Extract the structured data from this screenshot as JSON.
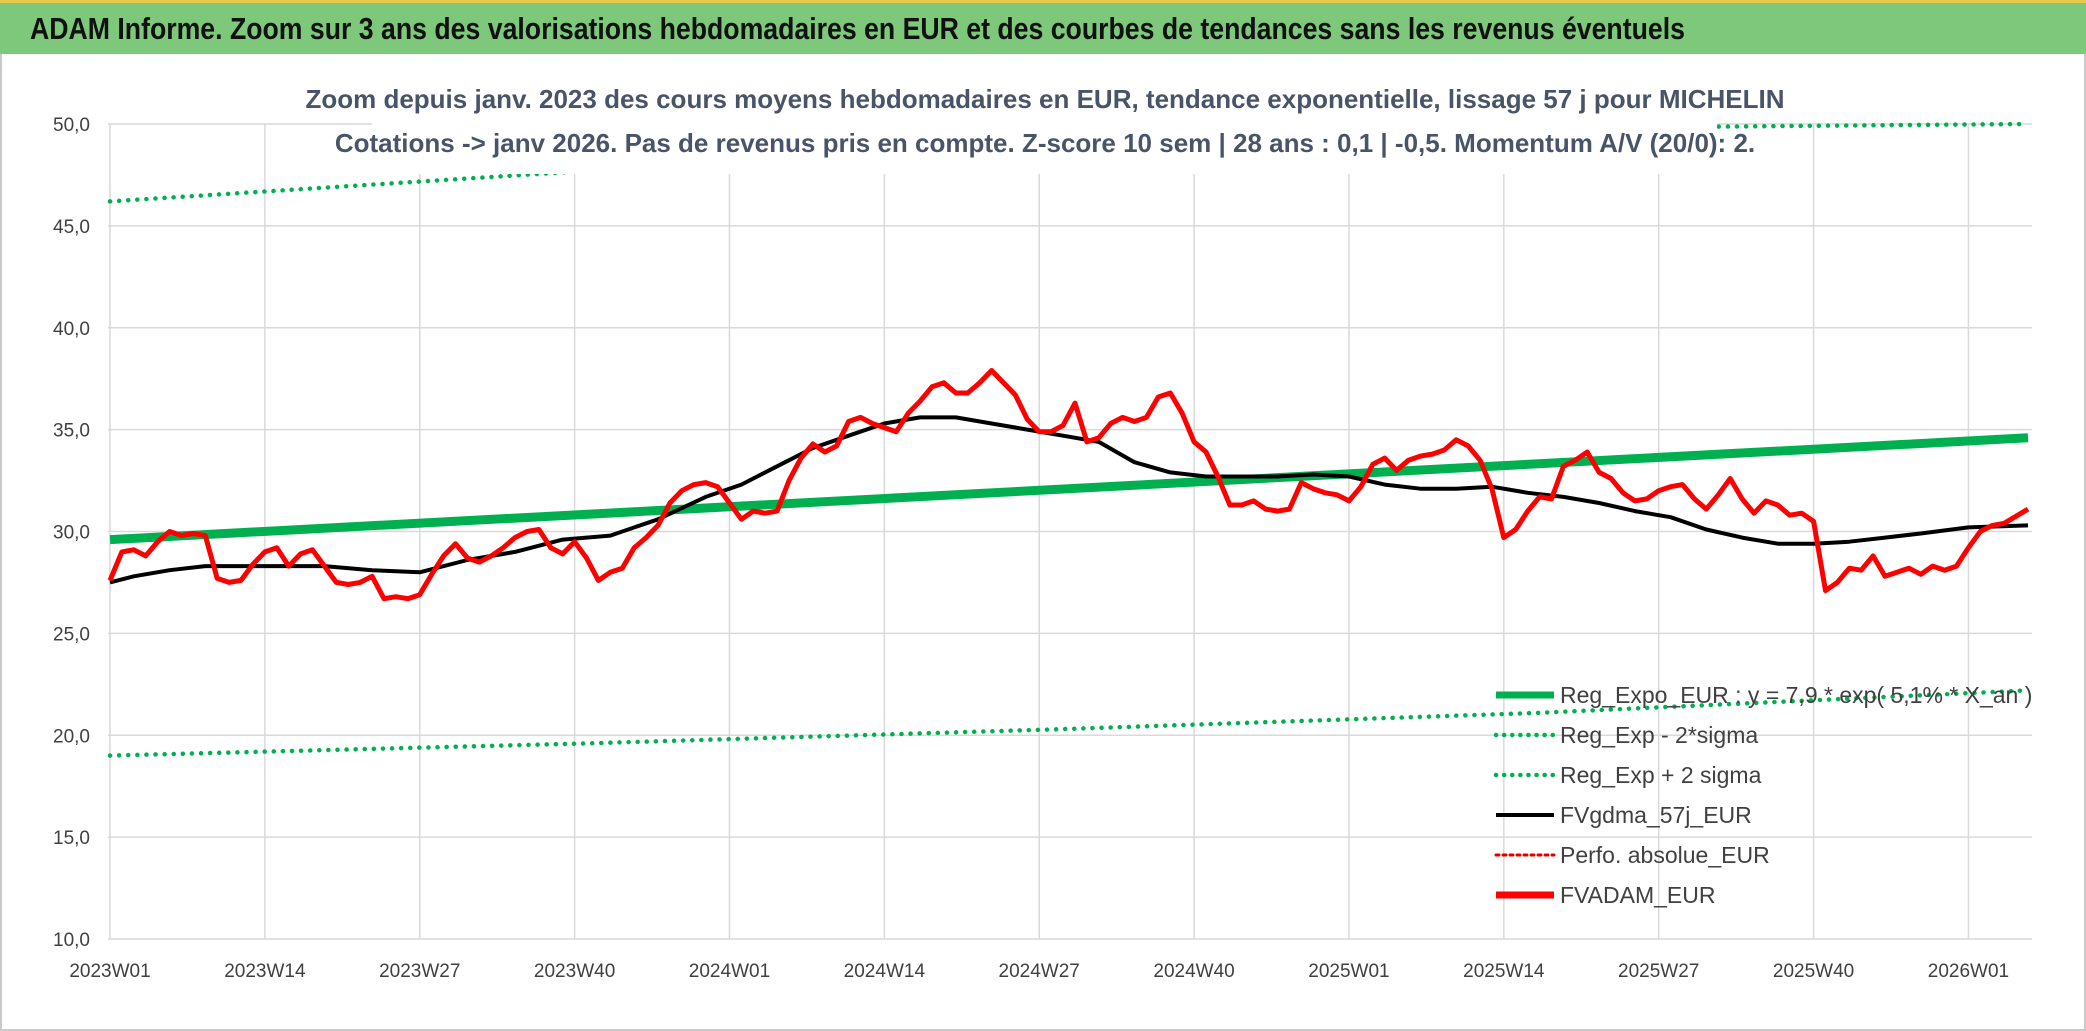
{
  "banner": {
    "title": "ADAM Informe. Zoom sur 3 ans des valorisations hebdomadaires en EUR et des courbes de tendances sans les revenus éventuels"
  },
  "colors": {
    "banner_bg": "#7dc87a",
    "reg_expo": "#00b050",
    "sigma_bands": "#00b050",
    "fvgdma": "#000000",
    "perfo": "#e00000",
    "fvadam": "#ff0000"
  },
  "chart_data": {
    "type": "line",
    "title_lines": [
      "Zoom depuis janv. 2023 des cours moyens hebdomadaires en EUR, tendance exponentielle, lissage 57 j pour MICHELIN",
      "Cotations -> janv 2026. Pas de revenus pris en compte. Z-score 10 sem | 28 ans : 0,1 | -0,5. Momentum A/V (20/0): 2."
    ],
    "xlabel": "",
    "ylabel": "",
    "ylim": [
      10,
      50
    ],
    "y_ticks": [
      "10,0",
      "15,0",
      "20,0",
      "25,0",
      "30,0",
      "35,0",
      "40,0",
      "45,0",
      "50,0"
    ],
    "x_ticks": [
      "2023W01",
      "2023W14",
      "2023W27",
      "2023W40",
      "2024W01",
      "2024W14",
      "2024W27",
      "2024W40",
      "2025W01",
      "2025W14",
      "2025W27",
      "2025W40",
      "2026W01"
    ],
    "x_range_weeks": [
      0,
      161
    ],
    "grid": true,
    "legend_position": "bottom-right",
    "series": [
      {
        "name": "Reg_Expo_EUR : y = 7,9 * exp( 5,1% * X_an )",
        "style": "thick-solid",
        "color": "#00b050",
        "points": [
          [
            0,
            29.6
          ],
          [
            161,
            34.6
          ]
        ]
      },
      {
        "name": "Reg_Exp - 2*sigma",
        "style": "dotted",
        "color": "#00b050",
        "points": [
          [
            0,
            19.0
          ],
          [
            40,
            19.6
          ],
          [
            80,
            20.3
          ],
          [
            120,
            21.1
          ],
          [
            161,
            22.2
          ]
        ]
      },
      {
        "name": "Reg_Exp + 2 sigma",
        "style": "dotted",
        "color": "#00b050",
        "points": [
          [
            0,
            46.2
          ],
          [
            40,
            47.7
          ],
          [
            80,
            48.9
          ],
          [
            120,
            49.8
          ],
          [
            161,
            50.0
          ]
        ]
      },
      {
        "name": "FVgdma_57j_EUR",
        "style": "solid",
        "color": "#000000",
        "points": [
          [
            0,
            27.5
          ],
          [
            2,
            27.8
          ],
          [
            5,
            28.1
          ],
          [
            8,
            28.3
          ],
          [
            11,
            28.3
          ],
          [
            14,
            28.3
          ],
          [
            18,
            28.3
          ],
          [
            22,
            28.1
          ],
          [
            26,
            28.0
          ],
          [
            30,
            28.6
          ],
          [
            34,
            29.0
          ],
          [
            38,
            29.6
          ],
          [
            42,
            29.8
          ],
          [
            46,
            30.6
          ],
          [
            50,
            31.7
          ],
          [
            53,
            32.3
          ],
          [
            56,
            33.2
          ],
          [
            59,
            34.1
          ],
          [
            62,
            34.7
          ],
          [
            65,
            35.3
          ],
          [
            68,
            35.6
          ],
          [
            71,
            35.6
          ],
          [
            74,
            35.3
          ],
          [
            77,
            35.0
          ],
          [
            80,
            34.7
          ],
          [
            83,
            34.4
          ],
          [
            86,
            33.4
          ],
          [
            89,
            32.9
          ],
          [
            92,
            32.7
          ],
          [
            95,
            32.7
          ],
          [
            98,
            32.7
          ],
          [
            101,
            32.8
          ],
          [
            104,
            32.7
          ],
          [
            107,
            32.3
          ],
          [
            110,
            32.1
          ],
          [
            113,
            32.1
          ],
          [
            116,
            32.2
          ],
          [
            119,
            31.9
          ],
          [
            122,
            31.7
          ],
          [
            125,
            31.4
          ],
          [
            128,
            31.0
          ],
          [
            131,
            30.7
          ],
          [
            134,
            30.1
          ],
          [
            137,
            29.7
          ],
          [
            140,
            29.4
          ],
          [
            143,
            29.4
          ],
          [
            146,
            29.5
          ],
          [
            149,
            29.7
          ],
          [
            152,
            29.9
          ],
          [
            156,
            30.2
          ],
          [
            161,
            30.3
          ]
        ]
      },
      {
        "name": "Perfo. absolue_EUR",
        "style": "dotted",
        "color": "#e00000",
        "points": []
      },
      {
        "name": "FVADAM_EUR",
        "style": "thick-solid",
        "color": "#ff0000",
        "points": [
          [
            0,
            27.6
          ],
          [
            1,
            29.0
          ],
          [
            2,
            29.1
          ],
          [
            3,
            28.8
          ],
          [
            4,
            29.5
          ],
          [
            5,
            30.0
          ],
          [
            6,
            29.8
          ],
          [
            7,
            29.9
          ],
          [
            8,
            29.8
          ],
          [
            9,
            27.7
          ],
          [
            10,
            27.5
          ],
          [
            11,
            27.6
          ],
          [
            12,
            28.4
          ],
          [
            13,
            29.0
          ],
          [
            14,
            29.2
          ],
          [
            15,
            28.3
          ],
          [
            16,
            28.9
          ],
          [
            17,
            29.1
          ],
          [
            18,
            28.3
          ],
          [
            19,
            27.5
          ],
          [
            20,
            27.4
          ],
          [
            21,
            27.5
          ],
          [
            22,
            27.8
          ],
          [
            23,
            26.7
          ],
          [
            24,
            26.8
          ],
          [
            25,
            26.7
          ],
          [
            26,
            26.9
          ],
          [
            27,
            27.9
          ],
          [
            28,
            28.8
          ],
          [
            29,
            29.4
          ],
          [
            30,
            28.7
          ],
          [
            31,
            28.5
          ],
          [
            32,
            28.8
          ],
          [
            33,
            29.2
          ],
          [
            34,
            29.7
          ],
          [
            35,
            30.0
          ],
          [
            36,
            30.1
          ],
          [
            37,
            29.2
          ],
          [
            38,
            28.9
          ],
          [
            39,
            29.5
          ],
          [
            40,
            28.7
          ],
          [
            41,
            27.6
          ],
          [
            42,
            28.0
          ],
          [
            43,
            28.2
          ],
          [
            44,
            29.2
          ],
          [
            45,
            29.7
          ],
          [
            46,
            30.3
          ],
          [
            47,
            31.4
          ],
          [
            48,
            32.0
          ],
          [
            49,
            32.3
          ],
          [
            50,
            32.4
          ],
          [
            51,
            32.2
          ],
          [
            52,
            31.4
          ],
          [
            53,
            30.6
          ],
          [
            54,
            31.0
          ],
          [
            55,
            30.9
          ],
          [
            56,
            31.0
          ],
          [
            57,
            32.5
          ],
          [
            58,
            33.6
          ],
          [
            59,
            34.3
          ],
          [
            60,
            33.9
          ],
          [
            61,
            34.2
          ],
          [
            62,
            35.4
          ],
          [
            63,
            35.6
          ],
          [
            64,
            35.3
          ],
          [
            65,
            35.1
          ],
          [
            66,
            34.9
          ],
          [
            67,
            35.8
          ],
          [
            68,
            36.4
          ],
          [
            69,
            37.1
          ],
          [
            70,
            37.3
          ],
          [
            71,
            36.8
          ],
          [
            72,
            36.8
          ],
          [
            73,
            37.3
          ],
          [
            74,
            37.9
          ],
          [
            75,
            37.3
          ],
          [
            76,
            36.7
          ],
          [
            77,
            35.5
          ],
          [
            78,
            34.9
          ],
          [
            79,
            34.9
          ],
          [
            80,
            35.2
          ],
          [
            81,
            36.3
          ],
          [
            82,
            34.4
          ],
          [
            83,
            34.6
          ],
          [
            84,
            35.3
          ],
          [
            85,
            35.6
          ],
          [
            86,
            35.4
          ],
          [
            87,
            35.6
          ],
          [
            88,
            36.6
          ],
          [
            89,
            36.8
          ],
          [
            90,
            35.8
          ],
          [
            91,
            34.4
          ],
          [
            92,
            33.9
          ],
          [
            93,
            32.7
          ],
          [
            94,
            31.3
          ],
          [
            95,
            31.3
          ],
          [
            96,
            31.5
          ],
          [
            97,
            31.1
          ],
          [
            98,
            31.0
          ],
          [
            99,
            31.1
          ],
          [
            100,
            32.4
          ],
          [
            101,
            32.1
          ],
          [
            102,
            31.9
          ],
          [
            103,
            31.8
          ],
          [
            104,
            31.5
          ],
          [
            105,
            32.2
          ],
          [
            106,
            33.3
          ],
          [
            107,
            33.6
          ],
          [
            108,
            33.0
          ],
          [
            109,
            33.5
          ],
          [
            110,
            33.7
          ],
          [
            111,
            33.8
          ],
          [
            112,
            34.0
          ],
          [
            113,
            34.5
          ],
          [
            114,
            34.2
          ],
          [
            115,
            33.5
          ],
          [
            116,
            32.1
          ],
          [
            117,
            29.7
          ],
          [
            118,
            30.1
          ],
          [
            119,
            31.0
          ],
          [
            120,
            31.7
          ],
          [
            121,
            31.6
          ],
          [
            122,
            33.2
          ],
          [
            123,
            33.5
          ],
          [
            124,
            33.9
          ],
          [
            125,
            32.9
          ],
          [
            126,
            32.6
          ],
          [
            127,
            31.9
          ],
          [
            128,
            31.5
          ],
          [
            129,
            31.6
          ],
          [
            130,
            32.0
          ],
          [
            131,
            32.2
          ],
          [
            132,
            32.3
          ],
          [
            133,
            31.6
          ],
          [
            134,
            31.1
          ],
          [
            135,
            31.8
          ],
          [
            136,
            32.6
          ],
          [
            137,
            31.6
          ],
          [
            138,
            30.9
          ],
          [
            139,
            31.5
          ],
          [
            140,
            31.3
          ],
          [
            141,
            30.8
          ],
          [
            142,
            30.9
          ],
          [
            143,
            30.5
          ],
          [
            144,
            27.1
          ],
          [
            145,
            27.5
          ],
          [
            146,
            28.2
          ],
          [
            147,
            28.1
          ],
          [
            148,
            28.8
          ],
          [
            149,
            27.8
          ],
          [
            150,
            28.0
          ],
          [
            151,
            28.2
          ],
          [
            152,
            27.9
          ],
          [
            153,
            28.3
          ],
          [
            154,
            28.1
          ],
          [
            155,
            28.3
          ],
          [
            156,
            29.2
          ],
          [
            157,
            30.0
          ],
          [
            158,
            30.3
          ],
          [
            159,
            30.4
          ],
          [
            161,
            31.1
          ]
        ]
      }
    ]
  }
}
